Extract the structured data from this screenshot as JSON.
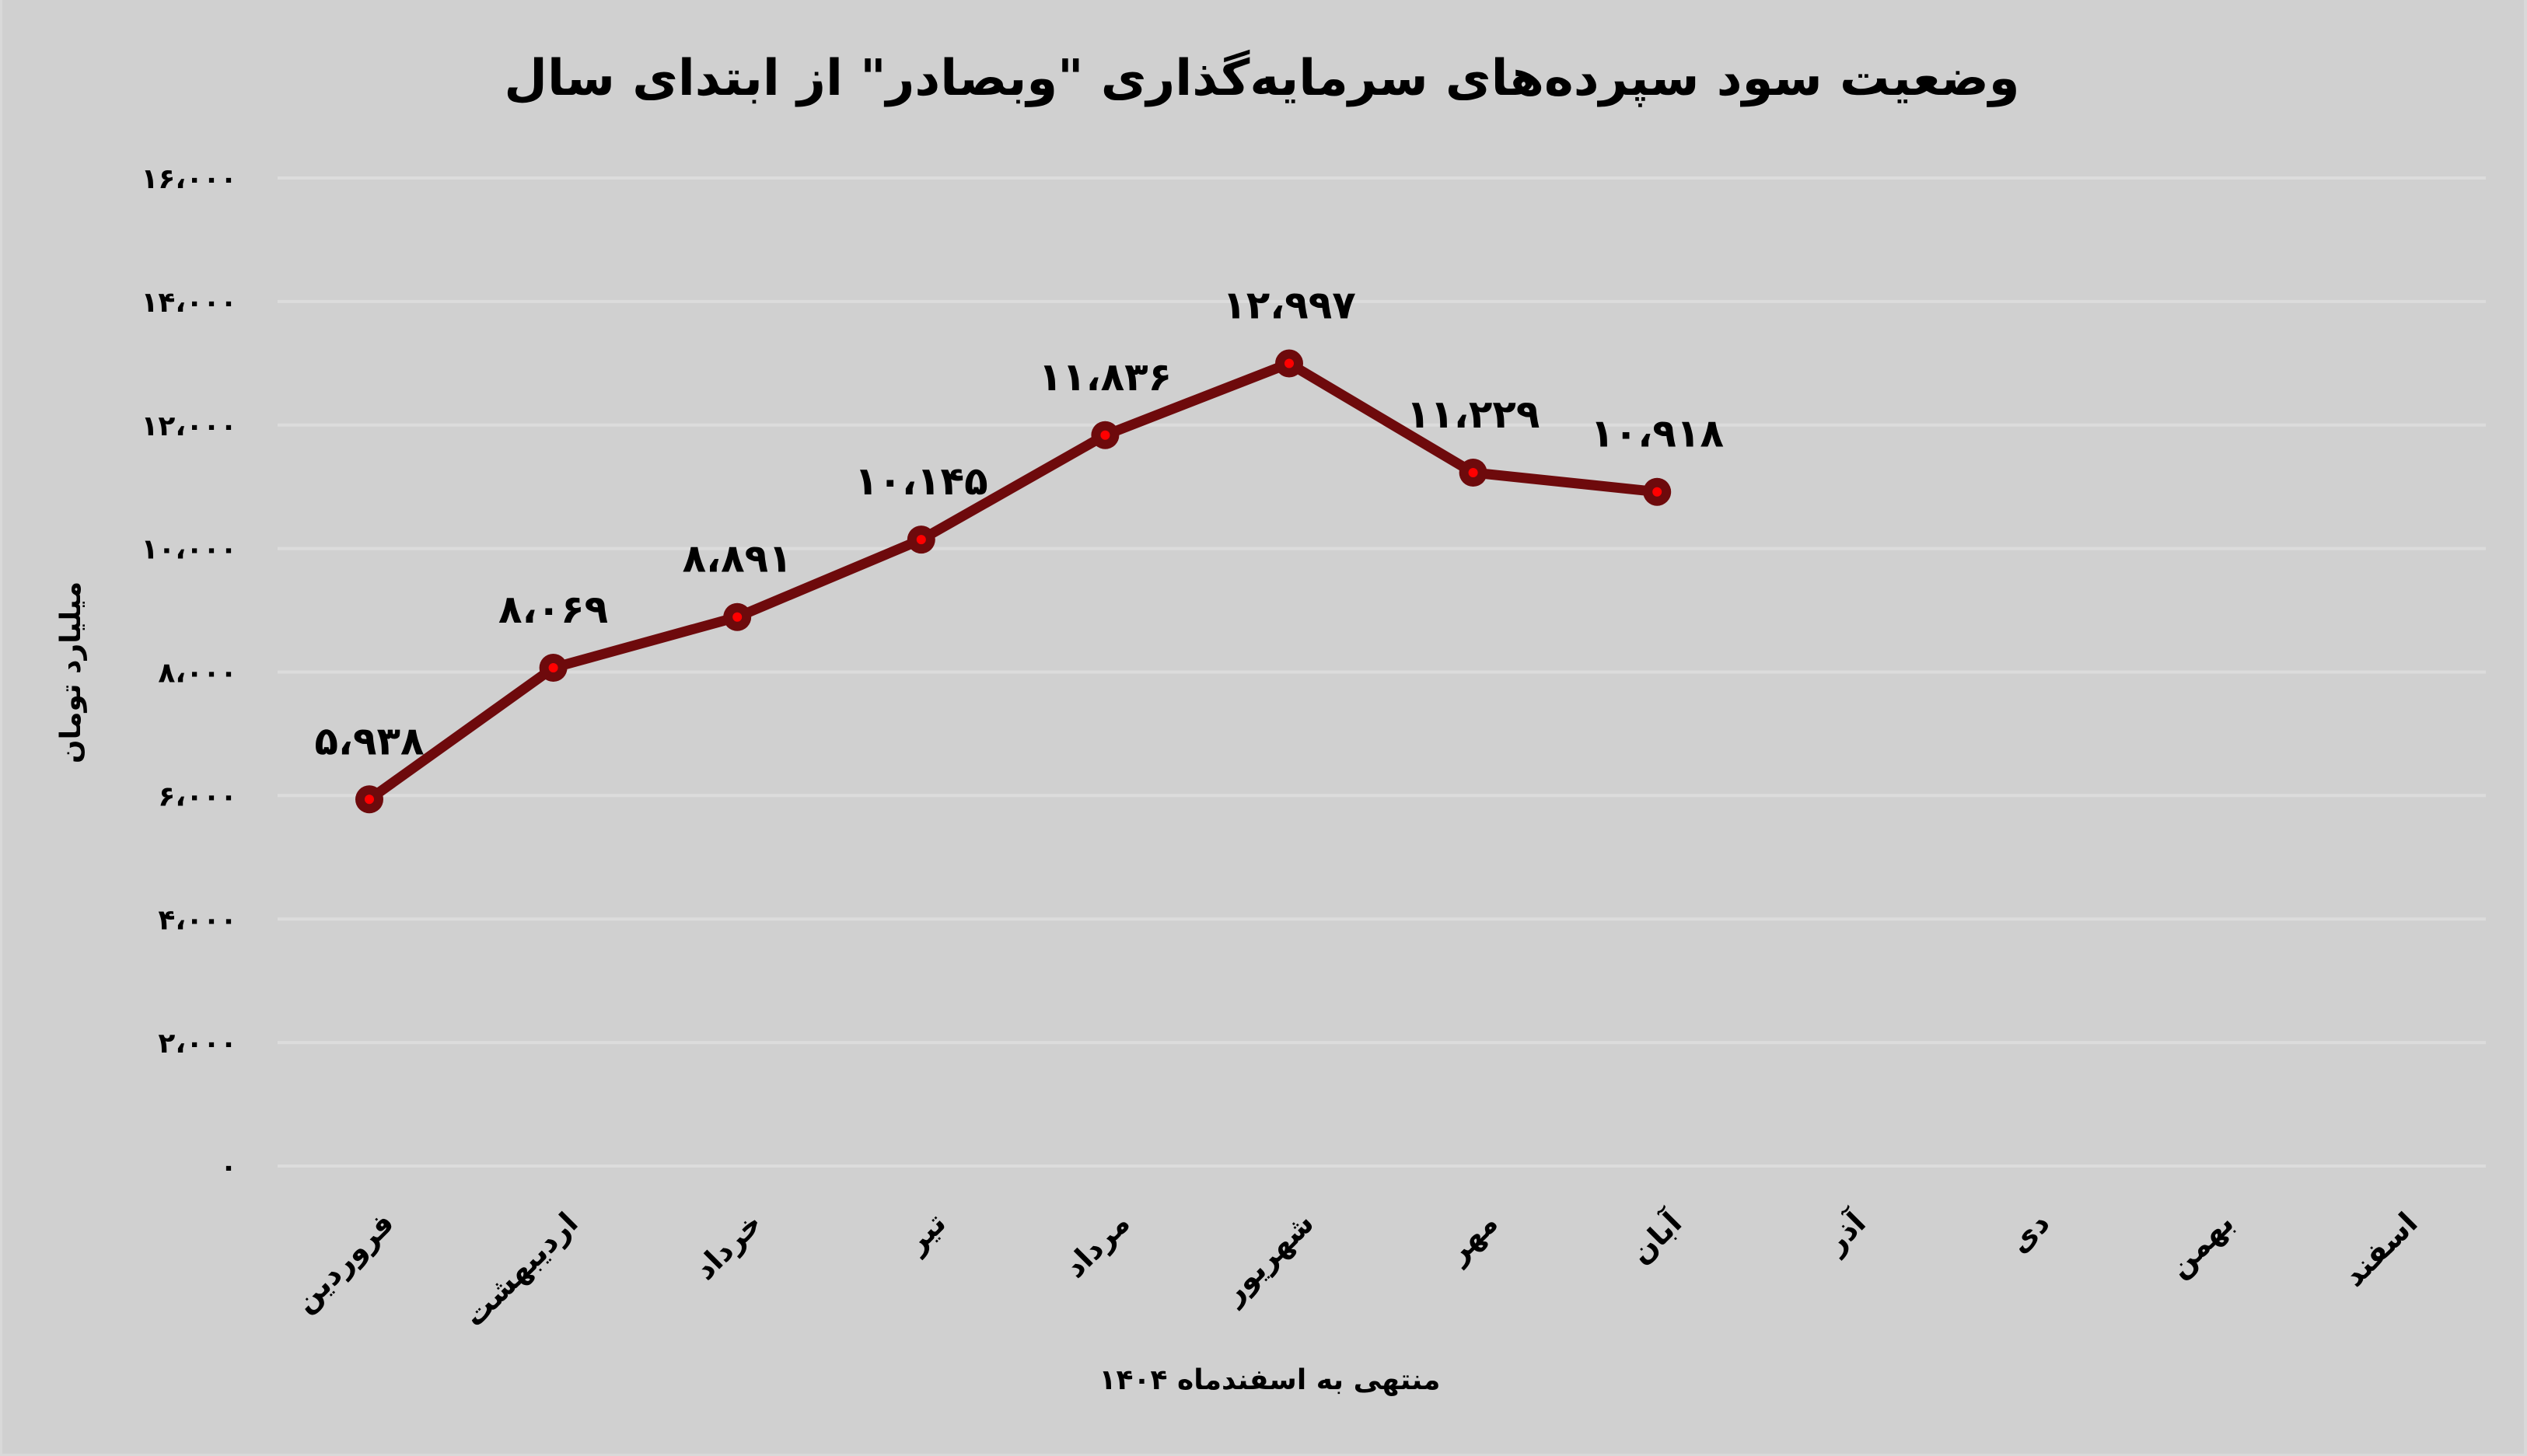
{
  "chart_data": {
    "type": "line",
    "title": "وضعیت سود سپرده‌های سرمایه‌گذاری \"وبصادر\" از ابتدای سال",
    "xlabel": "منتهی به اسفندماه ۱۴۰۴",
    "ylabel": "میلیارد تومان",
    "ylim": [
      0,
      16000
    ],
    "grid": true,
    "legend": null,
    "categories": [
      "فروردین",
      "اردیبهشت",
      "خرداد",
      "تیر",
      "مرداد",
      "شهریور",
      "مهر",
      "آبان",
      "آذر",
      "دی",
      "بهمن",
      "اسفند"
    ],
    "series": [
      {
        "name": "سود سپرده‌های سرمایه‌گذاری",
        "values": [
          5938,
          8069,
          8891,
          10145,
          11836,
          12997,
          11229,
          10918,
          null,
          null,
          null,
          null
        ],
        "data_labels": [
          "۵،۹۳۸",
          "۸،۰۶۹",
          "۸،۸۹۱",
          "۱۰،۱۴۵",
          "۱۱،۸۳۶",
          "۱۲،۹۹۷",
          "۱۱،۲۲۹",
          "۱۰،۹۱۸",
          null,
          null,
          null,
          null
        ],
        "color": "#6e0a0c",
        "marker_center_color": "#ff0000"
      }
    ],
    "y_ticks": [
      {
        "value": 0,
        "label": "۰"
      },
      {
        "value": 2000,
        "label": "۲،۰۰۰"
      },
      {
        "value": 4000,
        "label": "۴،۰۰۰"
      },
      {
        "value": 6000,
        "label": "۶،۰۰۰"
      },
      {
        "value": 8000,
        "label": "۸،۰۰۰"
      },
      {
        "value": 10000,
        "label": "۱۰،۰۰۰"
      },
      {
        "value": 12000,
        "label": "۱۲،۰۰۰"
      },
      {
        "value": 14000,
        "label": "۱۴،۰۰۰"
      },
      {
        "value": 16000,
        "label": "۱۶،۰۰۰"
      }
    ]
  },
  "colors": {
    "background": "#d0d0d0",
    "border": "#d9d9d9",
    "gridline": "#dcdcdc",
    "line": "#6e0a0c",
    "marker_center": "#ff0000",
    "text": "#000000"
  }
}
